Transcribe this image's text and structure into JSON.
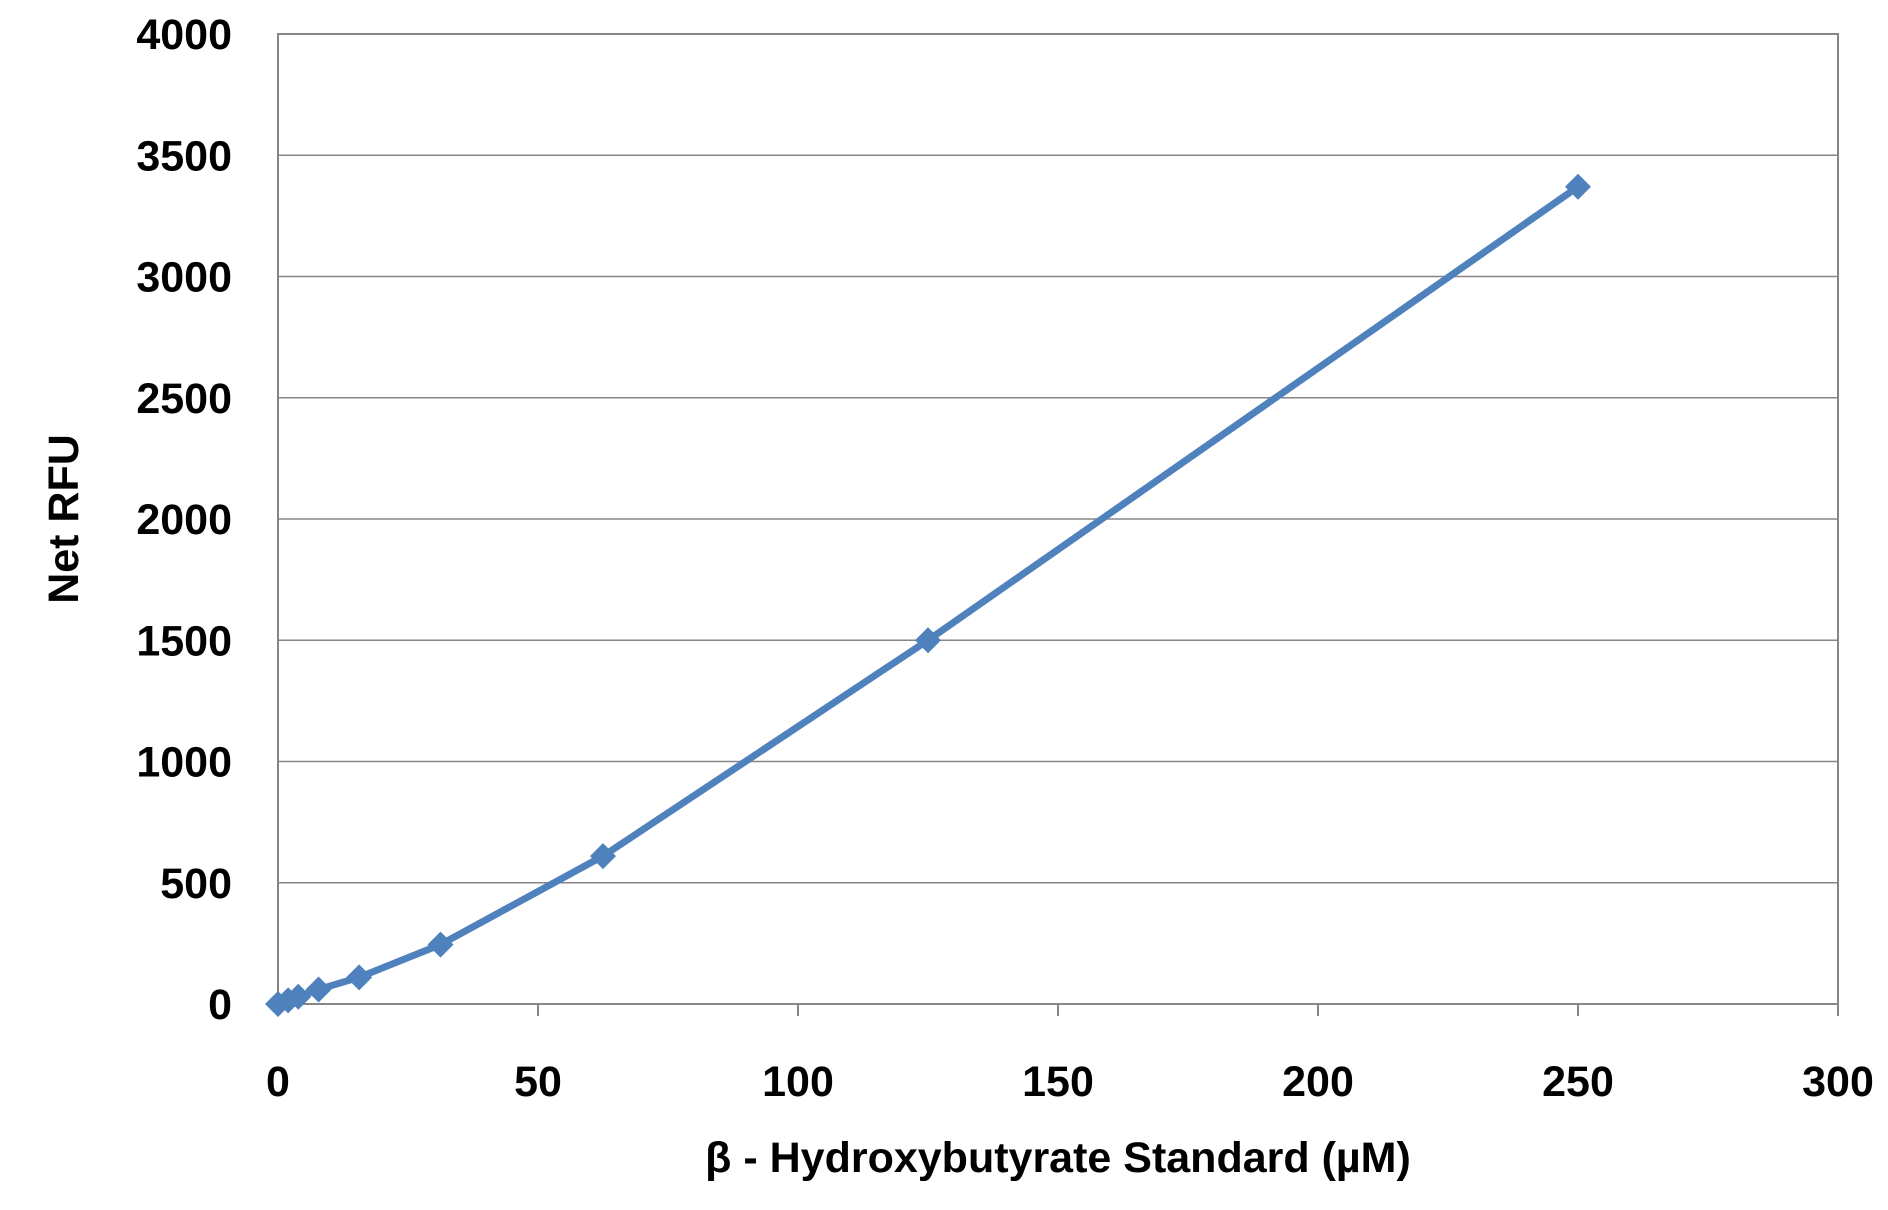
{
  "chart_data": {
    "type": "line",
    "title": "",
    "xlabel": "β - Hydroxybutyrate  Standard (µM)",
    "ylabel": "Net RFU",
    "xlim": [
      0,
      300
    ],
    "ylim": [
      0,
      4000
    ],
    "x_ticks": [
      0,
      50,
      100,
      150,
      200,
      250,
      300
    ],
    "y_ticks": [
      0,
      500,
      1000,
      1500,
      2000,
      2500,
      3000,
      3500,
      4000
    ],
    "x_tick_labels": [
      "0",
      "50",
      "100",
      "150",
      "200",
      "250",
      "300"
    ],
    "y_tick_labels": [
      "0",
      "500",
      "1000",
      "1500",
      "2000",
      "2500",
      "3000",
      "3500",
      "4000"
    ],
    "grid": "horizontal",
    "legend": "none",
    "series": [
      {
        "marker": "diamond",
        "color": "#4F81BD",
        "x": [
          0,
          1.95,
          3.9,
          7.8,
          15.6,
          31.25,
          62.5,
          125,
          250
        ],
        "y": [
          0,
          15,
          30,
          60,
          110,
          245,
          610,
          1500,
          3370
        ]
      }
    ]
  }
}
